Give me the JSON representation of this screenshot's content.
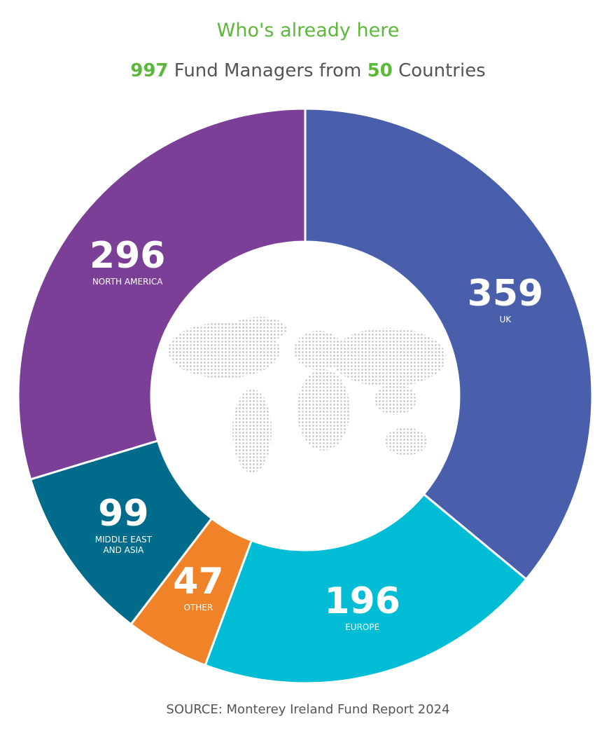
{
  "chart_data": {
    "type": "donut",
    "title": "Who's already here",
    "subtitle": {
      "total": 997,
      "text_1": "Fund Managers from",
      "countries": 50,
      "text_2": "Countries"
    },
    "categories": [
      "UK",
      "EUROPE",
      "OTHER",
      "MIDDLE EAST AND ASIA",
      "NORTH AMERICA"
    ],
    "values": [
      359,
      196,
      47,
      99,
      296
    ],
    "colors": [
      "#4a5fac",
      "#00bcd4",
      "#f08228",
      "#006b8a",
      "#7b3f98"
    ],
    "source": "SOURCE: Monterey Ireland Fund Report 2024"
  }
}
